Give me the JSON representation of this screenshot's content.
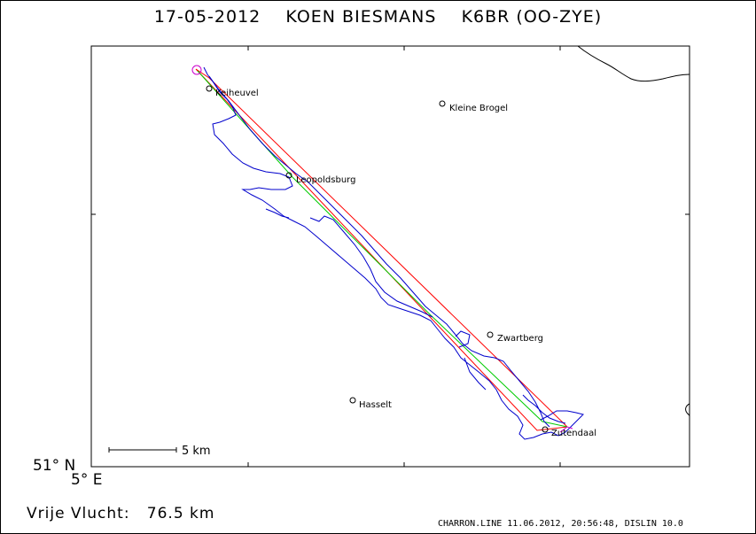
{
  "title": "17-05-2012    KOEN BIESMANS    K6BR (OO-ZYE)",
  "axis": {
    "latitude_label": "51° N",
    "longitude_label": "5° E"
  },
  "scale_bar": {
    "label": "5 km"
  },
  "places": [
    {
      "name": "Keiheuvel"
    },
    {
      "name": "Kleine Brogel"
    },
    {
      "name": "Leopoldsburg"
    },
    {
      "name": "Zwartberg"
    },
    {
      "name": "Hasselt"
    },
    {
      "name": "Zutendaal"
    }
  ],
  "distance": {
    "label": "Vrije Vlucht:",
    "value": "76.5 km"
  },
  "footer": "CHARRON.LINE 11.06.2012, 20:56:48, DISLIN 10.0",
  "colors": {
    "track": "#0000cc",
    "task_line": "#ff0000",
    "optimized_line": "#00cc00",
    "marker": "#cc00cc",
    "border": "#000000"
  }
}
